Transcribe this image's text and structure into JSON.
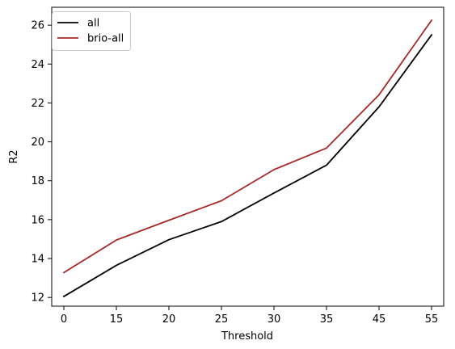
{
  "chart_data": {
    "type": "line",
    "categories": [
      "0",
      "15",
      "20",
      "25",
      "30",
      "35",
      "45",
      "55"
    ],
    "series": [
      {
        "name": "all",
        "color": "#000000",
        "values": [
          12.05,
          13.65,
          14.97,
          15.9,
          17.37,
          18.8,
          21.8,
          25.5
        ]
      },
      {
        "name": "brio-all",
        "color": "#a52a2a",
        "values": [
          13.28,
          14.95,
          15.97,
          16.97,
          18.57,
          19.68,
          22.42,
          26.25
        ]
      }
    ],
    "xlabel": "Threshold",
    "ylabel": "R2",
    "ylim": [
      11.55,
      26.92
    ],
    "yticks": [
      12,
      14,
      16,
      18,
      20,
      22,
      24,
      26
    ],
    "grid": false,
    "legend": "top-left"
  }
}
